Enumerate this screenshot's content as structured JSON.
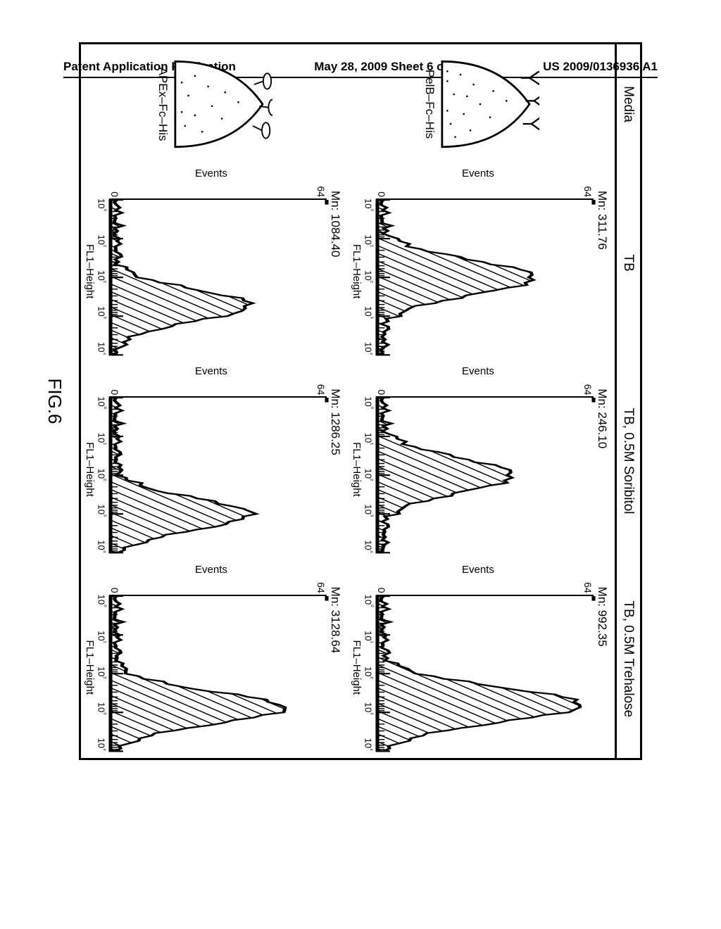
{
  "header": {
    "left": "Patent Application Publication",
    "center": "May 28, 2009  Sheet 6 of 51",
    "right": "US 2009/0136936 A1"
  },
  "figureLabel": "FIG.6",
  "columns": {
    "media": "Media",
    "tb": "TB",
    "sorbitol": "TB, 0.5M Soribitol",
    "trehalose": "TB, 0.5M Trehalose"
  },
  "rows": {
    "pelb": {
      "label": "PelB–Fc–His"
    },
    "apex": {
      "label": "APEx–Fc–His"
    }
  },
  "axes": {
    "ylabel": "Events",
    "xlabel": "FL1–Height",
    "ytop": "64",
    "ybot": "0",
    "xticks": [
      "10⁰",
      "10¹",
      "10²",
      "10³",
      "10⁴"
    ]
  },
  "cells": {
    "pelb_tb": {
      "mn": "Mn: 311.76",
      "peak_x": 0.5,
      "peak_h": 0.7,
      "width": 0.22
    },
    "pelb_sorbitol": {
      "mn": "Mn: 246.10",
      "peak_x": 0.5,
      "peak_h": 0.6,
      "width": 0.22
    },
    "pelb_trehalose": {
      "mn": "Mn: 992.35",
      "peak_x": 0.7,
      "peak_h": 0.92,
      "width": 0.22
    },
    "apex_tb": {
      "mn": "Mn: 1084.40",
      "peak_x": 0.68,
      "peak_h": 0.62,
      "width": 0.2
    },
    "apex_sorbitol": {
      "mn": "Mn: 1286.25",
      "peak_x": 0.75,
      "peak_h": 0.62,
      "width": 0.2
    },
    "apex_trehalose": {
      "mn": "Mn: 3128.64",
      "peak_x": 0.72,
      "peak_h": 0.78,
      "width": 0.2
    }
  },
  "style": {
    "bg": "#ffffff",
    "fg": "#000000",
    "hatchSpacing": 6,
    "fontBody": 15,
    "fontHeader": 17
  }
}
